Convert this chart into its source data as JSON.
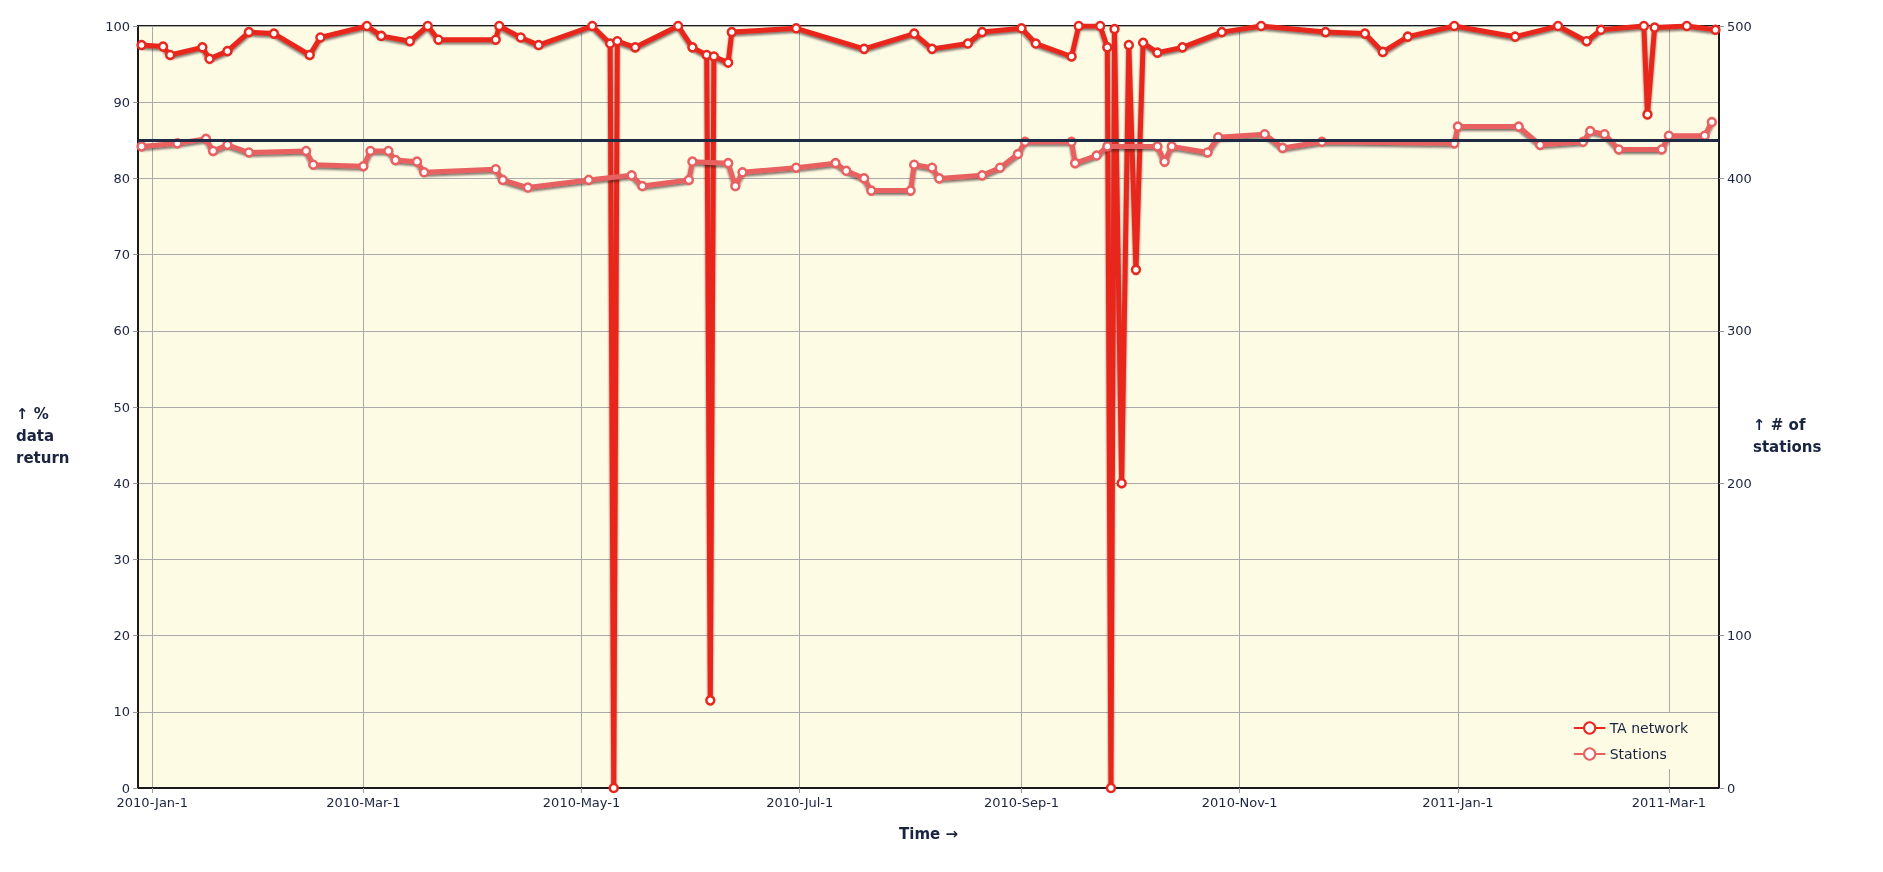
{
  "chart_data": {
    "type": "line",
    "xlabel": "Time →",
    "ylabel": "↑ % data return",
    "y2label": "↑ # of stations",
    "xlim": [
      "2009-12-28",
      "2011-03-15"
    ],
    "xticks": [
      {
        "value": "2010-01-01",
        "label": "2010-Jan-1"
      },
      {
        "value": "2010-03-01",
        "label": "2010-Mar-1"
      },
      {
        "value": "2010-05-01",
        "label": "2010-May-1"
      },
      {
        "value": "2010-07-01",
        "label": "2010-Jul-1"
      },
      {
        "value": "2010-09-01",
        "label": "2010-Sep-1"
      },
      {
        "value": "2010-11-01",
        "label": "2010-Nov-1"
      },
      {
        "value": "2011-01-01",
        "label": "2011-Jan-1"
      },
      {
        "value": "2011-03-01",
        "label": "2011-Mar-1"
      }
    ],
    "ylim": [
      0,
      100
    ],
    "yticks": [
      0,
      10,
      20,
      30,
      40,
      50,
      60,
      70,
      80,
      90,
      100
    ],
    "y2lim": [
      0,
      500
    ],
    "y2ticks": [
      0,
      100,
      200,
      300,
      400,
      500
    ],
    "grid": true,
    "legend": "bottom right",
    "marker": "circle",
    "line_style": "solid",
    "ref_lines": [
      {
        "axis": "y",
        "value": 85,
        "color": "#1f2a44"
      }
    ],
    "series": [
      {
        "name": "TA network",
        "color": "#e8281e",
        "x": [
          "2009-12-29",
          "2010-01-04",
          "2010-01-06",
          "2010-01-15",
          "2010-01-17",
          "2010-01-22",
          "2010-01-28",
          "2010-02-04",
          "2010-02-14",
          "2010-02-17",
          "2010-03-02",
          "2010-03-06",
          "2010-03-14",
          "2010-03-19",
          "2010-03-22",
          "2010-04-07",
          "2010-04-08",
          "2010-04-14",
          "2010-04-19",
          "2010-05-04",
          "2010-05-09",
          "2010-05-10",
          "2010-05-11",
          "2010-05-16",
          "2010-05-28",
          "2010-06-01",
          "2010-06-05",
          "2010-06-06",
          "2010-06-07",
          "2010-06-11",
          "2010-06-12",
          "2010-06-30",
          "2010-07-19",
          "2010-08-02",
          "2010-08-07",
          "2010-08-17",
          "2010-08-21",
          "2010-09-01",
          "2010-09-05",
          "2010-09-15",
          "2010-09-17",
          "2010-09-23",
          "2010-09-25",
          "2010-09-26",
          "2010-09-27",
          "2010-09-29",
          "2010-10-01",
          "2010-10-03",
          "2010-10-05",
          "2010-10-09",
          "2010-10-16",
          "2010-10-27",
          "2010-11-07",
          "2010-11-25",
          "2010-12-06",
          "2010-12-11",
          "2010-12-18",
          "2010-12-31",
          "2011-01-17",
          "2011-01-29",
          "2011-02-06",
          "2011-02-10",
          "2011-02-22",
          "2011-02-23",
          "2011-02-25",
          "2011-03-06",
          "2011-03-14"
        ],
        "values": [
          97.5,
          97.3,
          96.2,
          97.2,
          95.7,
          96.7,
          99.2,
          99,
          96.2,
          98.5,
          100,
          98.7,
          98,
          100,
          98.2,
          98.2,
          100,
          98.5,
          97.5,
          100,
          97.7,
          0,
          98,
          97.2,
          100,
          97.2,
          96.2,
          11.5,
          96,
          95.2,
          99.2,
          99.7,
          97,
          99,
          97,
          97.7,
          99.2,
          99.7,
          97.7,
          96,
          100,
          100,
          97.2,
          0,
          99.6,
          40,
          97.5,
          68,
          97.8,
          96.5,
          97.2,
          99.2,
          100,
          99.2,
          99,
          96.6,
          98.6,
          100,
          98.6,
          100,
          98,
          99.5,
          100,
          88.4,
          99.8,
          100,
          99.5
        ]
      },
      {
        "name": "Stations",
        "color": "#e86060",
        "axis": "y2",
        "x": [
          "2009-12-29",
          "2010-01-08",
          "2010-01-16",
          "2010-01-18",
          "2010-01-22",
          "2010-01-28",
          "2010-02-13",
          "2010-02-15",
          "2010-03-01",
          "2010-03-03",
          "2010-03-08",
          "2010-03-10",
          "2010-03-16",
          "2010-03-18",
          "2010-04-07",
          "2010-04-09",
          "2010-04-16",
          "2010-05-03",
          "2010-05-15",
          "2010-05-18",
          "2010-05-31",
          "2010-06-01",
          "2010-06-11",
          "2010-06-13",
          "2010-06-15",
          "2010-06-30",
          "2010-07-11",
          "2010-07-14",
          "2010-07-19",
          "2010-07-21",
          "2010-08-01",
          "2010-08-02",
          "2010-08-07",
          "2010-08-09",
          "2010-08-21",
          "2010-08-26",
          "2010-08-31",
          "2010-09-02",
          "2010-09-15",
          "2010-09-16",
          "2010-09-22",
          "2010-09-25",
          "2010-10-09",
          "2010-10-11",
          "2010-10-13",
          "2010-10-23",
          "2010-10-26",
          "2010-11-08",
          "2010-11-13",
          "2010-11-24",
          "2010-12-31",
          "2011-01-01",
          "2011-01-18",
          "2011-01-24",
          "2011-02-05",
          "2011-02-07",
          "2011-02-11",
          "2011-02-15",
          "2011-02-27",
          "2011-03-01",
          "2011-03-11",
          "2011-03-13"
        ],
        "values": [
          421,
          423,
          426,
          418,
          422,
          417,
          418,
          409,
          408,
          418,
          418,
          412,
          411,
          404,
          406,
          399,
          394,
          399,
          402,
          395,
          399,
          411,
          410,
          395,
          404,
          407,
          410,
          405,
          400,
          392,
          392,
          409,
          407,
          400,
          402,
          407,
          416,
          424,
          424,
          410,
          415,
          421,
          421,
          411,
          421,
          417,
          427,
          429,
          420,
          424,
          423,
          434,
          434,
          422,
          424,
          431,
          429,
          419,
          419,
          428,
          428,
          437
        ]
      }
    ]
  }
}
